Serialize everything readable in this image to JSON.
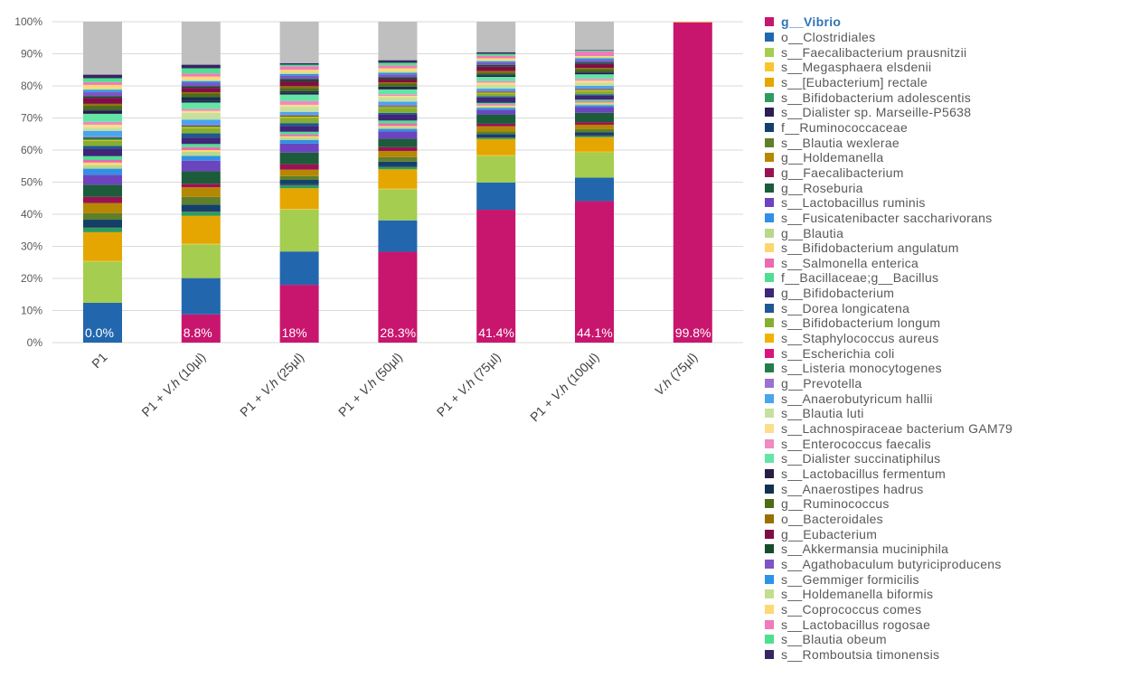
{
  "chart_data": {
    "type": "bar",
    "stacked": "percent",
    "title": "",
    "xlabel": "",
    "ylabel": "",
    "ylim": [
      0,
      100
    ],
    "yticks": [
      "0%",
      "10%",
      "20%",
      "30%",
      "40%",
      "50%",
      "60%",
      "70%",
      "80%",
      "90%",
      "100%"
    ],
    "grid": true,
    "legend_position": "right",
    "highlighted_legend_entry": "g__Vibrio",
    "categories": [
      "P1",
      "P1 + V.h (10µl)",
      "P1 + V.h (25µl)",
      "P1 + V.h (50µl)",
      "P1 + V.h (75µl)",
      "P1 + V.h (100µl)",
      "V.h (75µl)"
    ],
    "data_labels": [
      "0.0%",
      "8.8%",
      "18%",
      "28.3%",
      "41.4%",
      "44.1%",
      "99.8%"
    ],
    "other_color": "#BFBFBF",
    "series": [
      {
        "name": "g__Vibrio",
        "color": "#C8166E",
        "values": [
          0,
          8.8,
          18.0,
          28.3,
          41.4,
          44.1,
          99.8
        ]
      },
      {
        "name": "o__Clostridiales",
        "color": "#2267AE",
        "values": [
          12.4,
          11.3,
          10.4,
          9.8,
          8.5,
          7.3,
          0
        ]
      },
      {
        "name": "s__Faecalibacterium prausnitzii",
        "color": "#A5CD50",
        "values": [
          12.9,
          10.5,
          13.1,
          9.7,
          8.3,
          7.9,
          0
        ]
      },
      {
        "name": "s__Megasphaera elsdenii",
        "color": "#F9C52E",
        "values": [
          0.2,
          0.2,
          0.2,
          0.2,
          0.2,
          0.2,
          0.2
        ]
      },
      {
        "name": "s__[Eubacterium] rectale",
        "color": "#E5A602",
        "values": [
          8.9,
          8.7,
          6.4,
          6.0,
          5.0,
          4.5,
          0
        ]
      },
      {
        "name": "s__Bifidobacterium adolescentis",
        "color": "#2E9B5E",
        "values": [
          1.5,
          1.3,
          1.0,
          0.8,
          0.5,
          0.4,
          0
        ]
      },
      {
        "name": "s__Dialister sp. Marseille-P5638",
        "color": "#2D1E53",
        "values": [
          0.3,
          0.3,
          0.3,
          0.3,
          0.3,
          0.3,
          0
        ]
      },
      {
        "name": "f__Ruminococcaceae",
        "color": "#13406B",
        "values": [
          2.1,
          1.9,
          1.3,
          1.3,
          0.8,
          0.8,
          0
        ]
      },
      {
        "name": "s__Blautia wexlerae",
        "color": "#5E7F2C",
        "values": [
          2.0,
          2.4,
          1.2,
          1.4,
          0.8,
          1.0,
          0
        ]
      },
      {
        "name": "g__Holdemanella",
        "color": "#B68702",
        "values": [
          3.2,
          3.0,
          2.0,
          1.9,
          1.6,
          1.4,
          0
        ]
      },
      {
        "name": "g__Faecalibacterium",
        "color": "#9B1252",
        "values": [
          1.9,
          1.1,
          1.7,
          1.2,
          0.8,
          0.8,
          0
        ]
      },
      {
        "name": "g__Roseburia",
        "color": "#1C5C3A",
        "values": [
          3.8,
          3.9,
          3.6,
          2.6,
          2.9,
          2.9,
          0
        ]
      },
      {
        "name": "s__Lactobacillus ruminis",
        "color": "#6C44BE",
        "values": [
          3.1,
          3.3,
          2.8,
          2.3,
          1.4,
          1.8,
          0
        ]
      },
      {
        "name": "s__Fusicatenibacter saccharivorans",
        "color": "#3190E6",
        "values": [
          1.9,
          1.5,
          1.1,
          0.8,
          0.6,
          0.6,
          0
        ]
      },
      {
        "name": "g__Blautia",
        "color": "#B8D98A",
        "values": [
          1.1,
          1.3,
          0.8,
          0.6,
          0.5,
          0.5,
          0
        ]
      },
      {
        "name": "s__Bifidobacterium angulatum",
        "color": "#FCD670",
        "values": [
          0.8,
          0.5,
          0.4,
          0.3,
          0.3,
          0.3,
          0
        ]
      },
      {
        "name": "s__Salmonella enterica",
        "color": "#EC6AAF",
        "values": [
          0.8,
          0.9,
          0.6,
          0.8,
          0.4,
          0.4,
          0
        ]
      },
      {
        "name": "f__Bacillaceae;g__Bacillus",
        "color": "#4FDD92",
        "values": [
          1.2,
          1.0,
          0.8,
          0.9,
          0.4,
          0.5,
          0
        ]
      },
      {
        "name": "g__Bifidobacterium",
        "color": "#3F2676",
        "values": [
          2.3,
          2.0,
          1.8,
          1.8,
          1.7,
          1.3,
          0
        ]
      },
      {
        "name": "s__Dorea longicatena",
        "color": "#1F5792",
        "values": [
          0.9,
          1.3,
          0.9,
          0.6,
          0.4,
          0.4,
          0
        ]
      },
      {
        "name": "s__Bifidobacterium longum",
        "color": "#85AF31",
        "values": [
          1.6,
          1.6,
          1.6,
          1.5,
          0.8,
          1.0,
          0
        ]
      },
      {
        "name": "s__Staphylococcus aureus",
        "color": "#F3B200",
        "values": [
          0.3,
          0.4,
          0.4,
          0.3,
          0.3,
          0.3,
          0
        ]
      },
      {
        "name": "s__Escherichia coli",
        "color": "#D9147B",
        "values": [
          0,
          0,
          0,
          0,
          0,
          0,
          0
        ]
      },
      {
        "name": "s__Listeria monocytogenes",
        "color": "#217E4A",
        "values": [
          0.8,
          0.4,
          0.4,
          0.3,
          0.3,
          0.3,
          0
        ]
      },
      {
        "name": "g__Prevotella",
        "color": "#9A72D0",
        "values": [
          0.3,
          0.4,
          0.4,
          0.4,
          0.4,
          0.4,
          0
        ]
      },
      {
        "name": "s__Anaerobutyricum hallii",
        "color": "#48A5EE",
        "values": [
          1.7,
          1.5,
          0.7,
          1.0,
          0.6,
          0.6,
          0
        ]
      },
      {
        "name": "s__Blautia luti",
        "color": "#C8E09E",
        "values": [
          1.0,
          2.1,
          1.6,
          1.4,
          1.2,
          1.0,
          0
        ]
      },
      {
        "name": "s__Lachnospiraceae bacterium GAM79",
        "color": "#FCDE8A",
        "values": [
          0.9,
          0.6,
          0.6,
          0.4,
          0.6,
          0.6,
          0
        ]
      },
      {
        "name": "s__Enterococcus faecalis",
        "color": "#F08AC0",
        "values": [
          0.9,
          0.6,
          1.2,
          0.5,
          0.5,
          0.6,
          0
        ]
      },
      {
        "name": "s__Dialister succinatiphilus",
        "color": "#63E5A5",
        "values": [
          2.5,
          2.0,
          2.0,
          1.5,
          1.3,
          1.4,
          0
        ]
      },
      {
        "name": "s__Lactobacillus fermentum",
        "color": "#2A1D45",
        "values": [
          0.9,
          0.5,
          0.5,
          0.4,
          0.4,
          0.4,
          0
        ]
      },
      {
        "name": "s__Anaerostipes hadrus",
        "color": "#10314F",
        "values": [
          0.4,
          1.2,
          0.6,
          0.5,
          0.4,
          0.4,
          0
        ]
      },
      {
        "name": "g__Ruminococcus",
        "color": "#4F6B17",
        "values": [
          1.3,
          1.1,
          1.0,
          0.9,
          0.6,
          0.8,
          0
        ]
      },
      {
        "name": "o__Bacteroidales",
        "color": "#977000",
        "values": [
          0.5,
          0.4,
          0.5,
          0.4,
          0.4,
          0.4,
          0
        ]
      },
      {
        "name": "g__Eubacterium",
        "color": "#800E44",
        "values": [
          1.9,
          1.4,
          1.5,
          1.0,
          1.4,
          1.2,
          0
        ]
      },
      {
        "name": "s__Akkermansia muciniphila",
        "color": "#164C2E",
        "values": [
          0.5,
          0.5,
          0.8,
          0.6,
          0.5,
          0.5,
          0
        ]
      },
      {
        "name": "s__Agathobaculum butyriciproducens",
        "color": "#7E55C4",
        "values": [
          1.3,
          1.1,
          1.0,
          0.9,
          0.8,
          0.8,
          0
        ]
      },
      {
        "name": "s__Gemmiger formicilis",
        "color": "#2B93E8",
        "values": [
          0.7,
          0.5,
          0.5,
          0.5,
          0.4,
          0.5,
          0
        ]
      },
      {
        "name": "s__Holdemanella biformis",
        "color": "#C2DE8F",
        "values": [
          0.4,
          0.4,
          0.5,
          0.5,
          0.3,
          0.4,
          0
        ]
      },
      {
        "name": "s__Coprococcus comes",
        "color": "#FDD873",
        "values": [
          1.1,
          1.0,
          0.8,
          0.9,
          0.6,
          0.3,
          0
        ]
      },
      {
        "name": "s__Lactobacillus rogosae",
        "color": "#F07ABA",
        "values": [
          0.9,
          1.0,
          1.1,
          0.9,
          0.8,
          1.4,
          0
        ]
      },
      {
        "name": "s__Blautia obeum",
        "color": "#4DE08F",
        "values": [
          1.2,
          1.6,
          0.5,
          0.8,
          0.6,
          0.3,
          0
        ]
      },
      {
        "name": "s__Romboutsia timonensis",
        "color": "#382463",
        "values": [
          1.1,
          1.1,
          0.5,
          0.8,
          0.5,
          0.2,
          0
        ]
      }
    ]
  }
}
